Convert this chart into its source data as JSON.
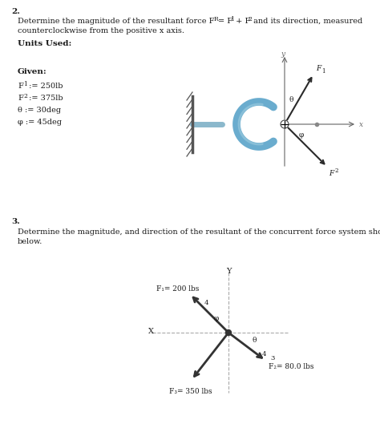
{
  "bg_color": "#ffffff",
  "text_color": "#1a1a1a",
  "fs": 7.0,
  "fs_bold": 7.5,
  "problem2_number": "2.",
  "prob2_line1a": "Determine the magnitude of the resultant force F",
  "prob2_line1b": " = F",
  "prob2_line1c": " + F",
  "prob2_line1d": " and its direction, measured",
  "prob2_line2": "counterclockwise from the positive x axis.",
  "units_label": "Units Used:",
  "given_label": "Given:",
  "theta_label": "θ := 30deg",
  "phi_label": "φ := 45deg",
  "problem3_number": "3.",
  "prob3_line1": "Determine the magnitude, and direction of the resultant of the concurrent force system shown",
  "prob3_line2": "below.",
  "diag1_x_label": "x",
  "diag1_y_label": "y",
  "diag1_F1_label": "F",
  "diag1_F1_sub": "1",
  "diag1_F2_label": "F",
  "diag1_F2_sub": "2",
  "diag1_theta": "θ",
  "diag1_phi": "φ",
  "diag2_Y_label": "Y",
  "diag2_X_label": "X",
  "diag2_F1_label": "F₁= 200 lbs",
  "diag2_F2_label": "F₂= 80.0 lbs",
  "diag2_F3_label": "F₃= 350 lbs",
  "diag2_phi_label": "φ",
  "diag2_theta_label": "θ",
  "diag2_4_label": "4",
  "diag2_3_label": "3",
  "hook_color": "#6aacce",
  "rod_color": "#8bb8cc",
  "wall_color": "#555555",
  "arrow_dark": "#2a2a2a",
  "axis_color": "#666666",
  "dashed_color": "#aaaaaa"
}
